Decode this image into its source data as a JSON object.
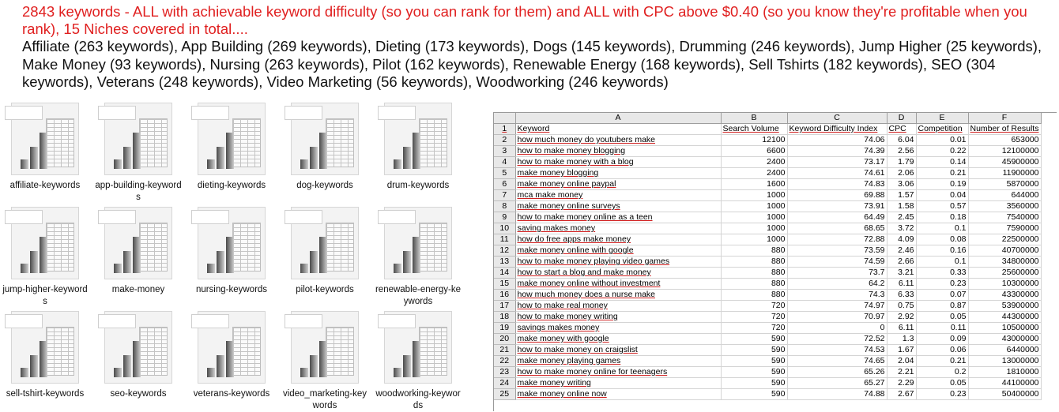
{
  "headline": "2843 keywords - ALL with achievable keyword difficulty (so you can rank for them) and ALL with CPC above $0.40 (so you know they're profitable when you rank), 15 Niches covered in total....",
  "niches": "Affiliate (263 keywords), App Building (269 keywords), Dieting (173 keywords), Dogs (145 keywords), Drumming (246 keywords), Jump Higher (25 keywords), Make Money (93 keywords), Nursing (263 keywords), Pilot (162 keywords), Renewable Energy (168 keywords), Sell Tshirts (182 keywords), SEO (304 keywords), Veterans (248 keywords), Video Marketing (56 keywords), Woodworking (246 keywords)",
  "files": [
    {
      "name": "affiliate-keywords"
    },
    {
      "name": "app-building-keywords"
    },
    {
      "name": "dieting-keywords"
    },
    {
      "name": "dog-keywords"
    },
    {
      "name": "drum-keywords"
    },
    {
      "name": "jump-higher-keywords"
    },
    {
      "name": "make-money"
    },
    {
      "name": "nursing-keywords"
    },
    {
      "name": "pilot-keywords"
    },
    {
      "name": "renewable-energy-keywords"
    },
    {
      "name": "sell-tshirt-keywords"
    },
    {
      "name": "seo-keywords"
    },
    {
      "name": "veterans-keywords"
    },
    {
      "name": "video_marketing-keywords"
    },
    {
      "name": "woodworking-keywords"
    }
  ],
  "spreadsheet": {
    "columns": [
      "A",
      "B",
      "C",
      "D",
      "E",
      "F"
    ],
    "header_row": [
      "Keyword",
      "Search Volume",
      "Keyword Difficulty Index",
      "CPC",
      "Competition",
      "Number of Results"
    ],
    "rows": [
      [
        "how much money do youtubers make",
        "12100",
        "74.06",
        "6.04",
        "0.01",
        "653000"
      ],
      [
        "how to make money blogging",
        "6600",
        "74.39",
        "2.56",
        "0.22",
        "12100000"
      ],
      [
        "how to make money with a blog",
        "2400",
        "73.17",
        "1.79",
        "0.14",
        "45900000"
      ],
      [
        "make money blogging",
        "2400",
        "74.61",
        "2.06",
        "0.21",
        "11900000"
      ],
      [
        "make money online paypal",
        "1600",
        "74.83",
        "3.06",
        "0.19",
        "5870000"
      ],
      [
        "mca make money",
        "1000",
        "69.88",
        "1.57",
        "0.04",
        "644000"
      ],
      [
        "make money online surveys",
        "1000",
        "73.91",
        "1.58",
        "0.57",
        "3560000"
      ],
      [
        "how to make money online as a teen",
        "1000",
        "64.49",
        "2.45",
        "0.18",
        "7540000"
      ],
      [
        "saving makes money",
        "1000",
        "68.65",
        "3.72",
        "0.1",
        "7590000"
      ],
      [
        "how do free apps make money",
        "1000",
        "72.88",
        "4.09",
        "0.08",
        "22500000"
      ],
      [
        "make money online with google",
        "880",
        "73.59",
        "2.46",
        "0.16",
        "40700000"
      ],
      [
        "how to make money playing video games",
        "880",
        "74.59",
        "2.66",
        "0.1",
        "34800000"
      ],
      [
        "how to start a blog and make money",
        "880",
        "73.7",
        "3.21",
        "0.33",
        "25600000"
      ],
      [
        "make money online without investment",
        "880",
        "64.2",
        "6.11",
        "0.23",
        "10300000"
      ],
      [
        "how much money does a nurse make",
        "880",
        "74.3",
        "6.33",
        "0.07",
        "43300000"
      ],
      [
        "how to make real money",
        "720",
        "74.97",
        "0.75",
        "0.87",
        "53900000"
      ],
      [
        "how to make money writing",
        "720",
        "70.97",
        "2.92",
        "0.05",
        "44300000"
      ],
      [
        "savings makes money",
        "720",
        "0",
        "6.11",
        "0.11",
        "10500000"
      ],
      [
        "make money with google",
        "590",
        "72.52",
        "1.3",
        "0.09",
        "43000000"
      ],
      [
        "how to make money on craigslist",
        "590",
        "74.53",
        "1.67",
        "0.06",
        "6440000"
      ],
      [
        "make money playing games",
        "590",
        "74.65",
        "2.04",
        "0.21",
        "13000000"
      ],
      [
        "how to make money online for teenagers",
        "590",
        "65.26",
        "2.21",
        "0.2",
        "1810000"
      ],
      [
        "make money writing",
        "590",
        "65.27",
        "2.29",
        "0.05",
        "44100000"
      ],
      [
        "make money online now",
        "590",
        "74.88",
        "2.67",
        "0.23",
        "50400000"
      ]
    ]
  }
}
